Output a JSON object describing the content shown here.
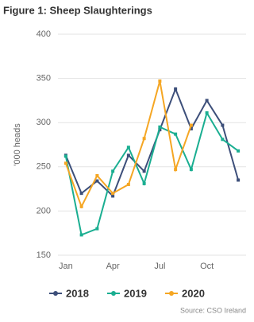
{
  "chart_data": {
    "type": "line",
    "title": "Figure 1: Sheep Slaughterings",
    "y_label": "'000 heads",
    "source": "Source: CSO Ireland",
    "categories": [
      "Jan",
      null,
      null,
      "Apr",
      null,
      null,
      "Jul",
      null,
      null,
      "Oct",
      null,
      null
    ],
    "series": [
      {
        "name": "2018",
        "color": "#3d4f7a",
        "values": [
          263,
          220,
          234,
          217,
          263,
          245,
          292,
          338,
          293,
          325,
          297,
          235
        ]
      },
      {
        "name": "2019",
        "color": "#1aae91",
        "values": [
          262,
          173,
          180,
          245,
          272,
          231,
          295,
          287,
          247,
          311,
          281,
          268
        ]
      },
      {
        "name": "2020",
        "color": "#f5a623",
        "values": [
          254,
          205,
          240,
          220,
          230,
          282,
          347,
          247,
          297,
          null,
          null,
          null
        ]
      }
    ],
    "ylim": [
      150,
      400
    ],
    "yticks": [
      150,
      200,
      250,
      300,
      350,
      400
    ],
    "grid": true,
    "legend": "bottom"
  }
}
